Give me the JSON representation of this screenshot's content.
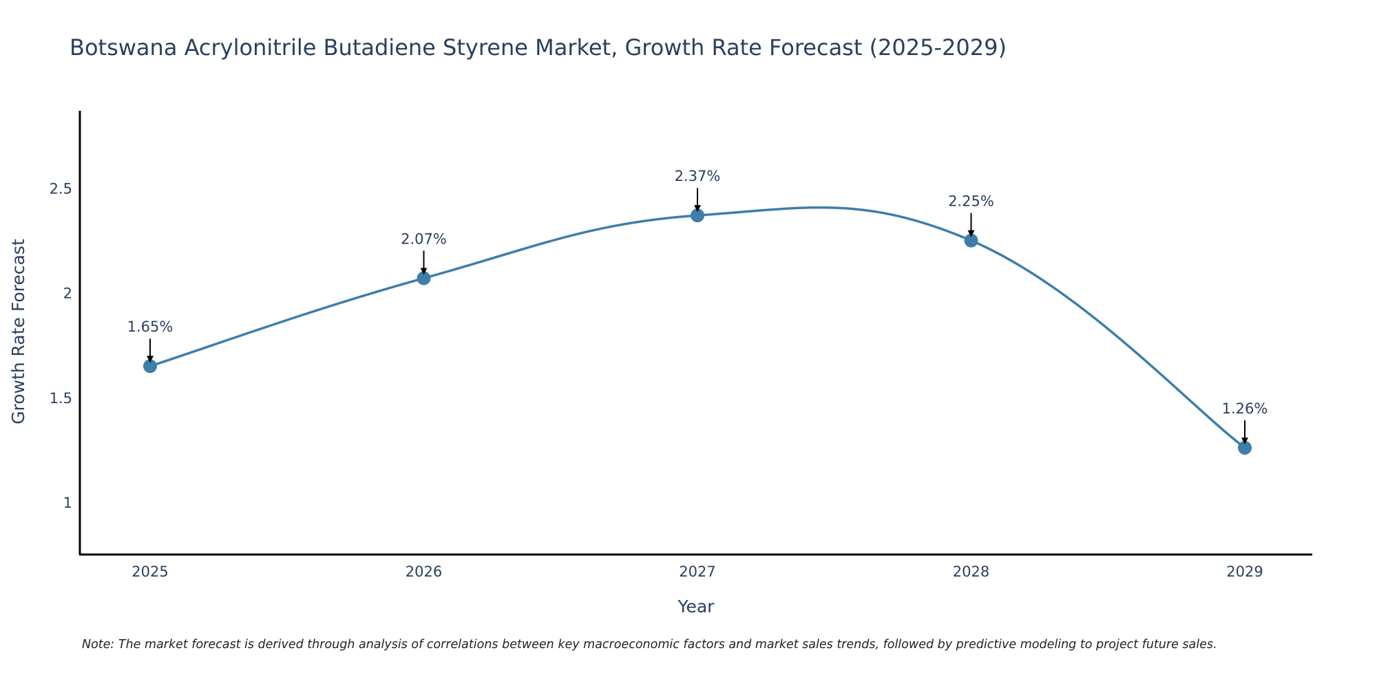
{
  "colors": {
    "line": "#3d7eaa",
    "marker": "#3d7eaa",
    "axis": "#000000",
    "arrow": "#000000",
    "text": "#2a3f5f"
  },
  "chart_data": {
    "type": "line",
    "title": "Botswana Acrylonitrile Butadiene Styrene Market, Growth Rate Forecast (2025-2029)",
    "xlabel": "Year",
    "ylabel": "Growth Rate Forecast",
    "categories": [
      "2025",
      "2026",
      "2027",
      "2028",
      "2029"
    ],
    "values": [
      1.65,
      2.07,
      2.37,
      2.25,
      1.26
    ],
    "data_labels": [
      "1.65%",
      "2.07%",
      "2.37%",
      "2.25%",
      "1.26%"
    ],
    "y_ticks": [
      1,
      1.5,
      2,
      2.5
    ],
    "y_tick_labels": [
      "1",
      "1.5",
      "2",
      "2.5"
    ],
    "ylim": [
      0.75,
      2.87
    ],
    "grid": false,
    "line_shape": "spline",
    "markers": true,
    "annotation_arrows": true,
    "legend": "none",
    "note": "Note: The market forecast is derived through analysis of correlations between key macroeconomic factors and market sales trends, followed by predictive modeling to project future sales."
  }
}
